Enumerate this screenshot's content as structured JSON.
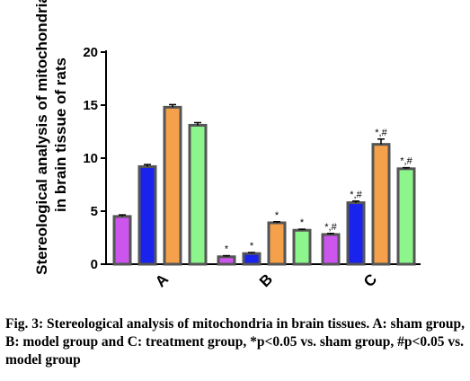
{
  "chart_data": {
    "type": "bar",
    "categories": [
      "A",
      "B",
      "C"
    ],
    "ylabel_lines": [
      "Stereological analysis of mitochondria",
      "in brain tissue of rats"
    ],
    "ylim": [
      0,
      20
    ],
    "yticks": [
      0,
      5,
      10,
      15,
      20
    ],
    "grid": false,
    "legend": "none",
    "series": [
      {
        "color": "#cc55ee",
        "values": [
          4.5,
          0.7,
          2.8
        ],
        "errors": [
          0.15,
          0.1,
          0.1
        ],
        "labels": [
          "",
          "*",
          "*,#"
        ]
      },
      {
        "color": "#1a22ee",
        "values": [
          9.2,
          1.0,
          5.8
        ],
        "errors": [
          0.2,
          0.1,
          0.15
        ],
        "labels": [
          "",
          "*",
          "*,#"
        ]
      },
      {
        "color": "#f5a04a",
        "values": [
          14.8,
          3.9,
          11.3
        ],
        "errors": [
          0.25,
          0.1,
          0.5
        ],
        "labels": [
          "",
          "*",
          "*,#"
        ]
      },
      {
        "color": "#8cf58c",
        "values": [
          13.1,
          3.2,
          9.0
        ],
        "errors": [
          0.25,
          0.1,
          0.1
        ],
        "labels": [
          "",
          "*",
          "*,#"
        ]
      }
    ]
  },
  "caption": "Fig. 3: Stereological analysis of mitochondria in brain tissues. A: sham group, B: model group and C: treatment group, *p<0.05 vs. sham group, #p<0.05 vs. model group"
}
